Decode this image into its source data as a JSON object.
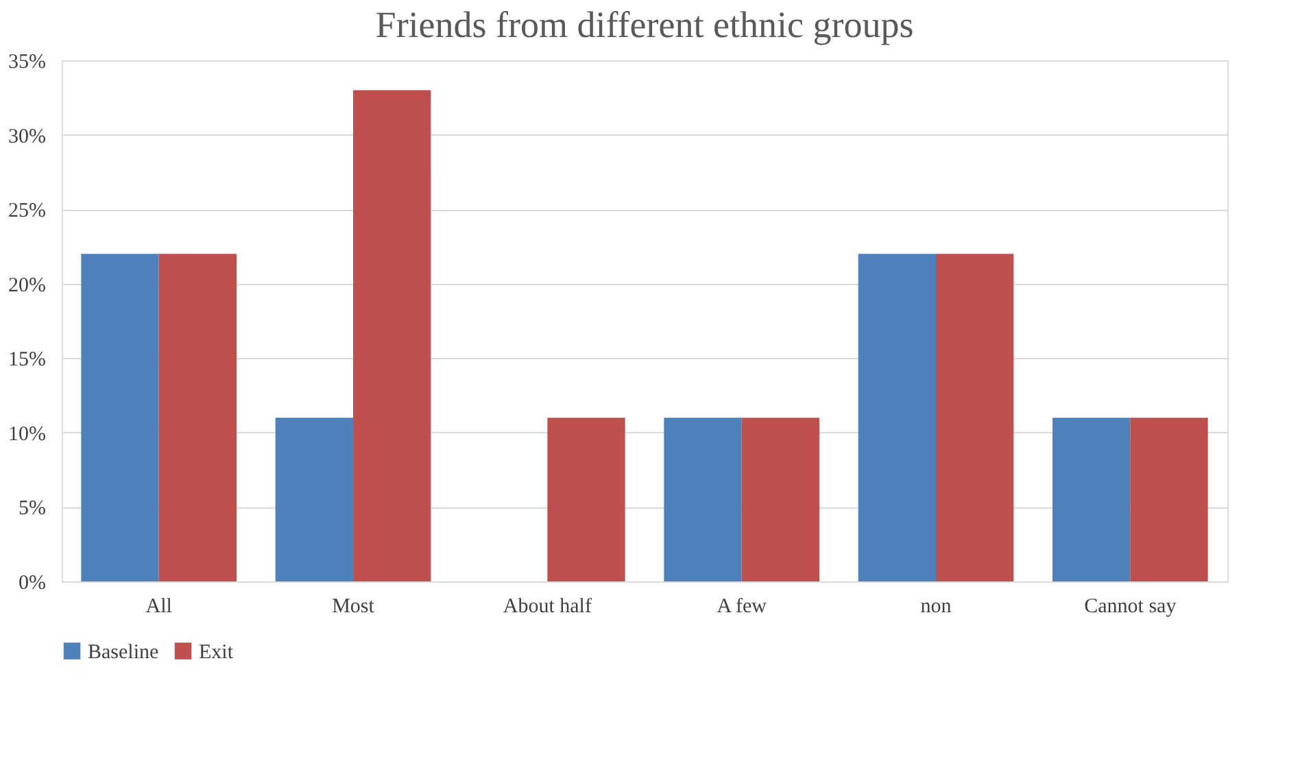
{
  "chart_data": {
    "type": "bar",
    "title": "Friends from different ethnic groups",
    "categories": [
      "All",
      "Most",
      "About half",
      "A few",
      "non",
      "Cannot say"
    ],
    "series": [
      {
        "name": "Baseline",
        "color": "#4f81bd",
        "values": [
          22,
          11,
          0,
          11,
          22,
          11
        ]
      },
      {
        "name": "Exit",
        "color": "#c0504d",
        "values": [
          22,
          33,
          11,
          11,
          22,
          11
        ]
      }
    ],
    "ylim": [
      0,
      35
    ],
    "yticks": [
      {
        "value": 0,
        "label": "0%"
      },
      {
        "value": 5,
        "label": "5%"
      },
      {
        "value": 10,
        "label": "10%"
      },
      {
        "value": 15,
        "label": "15%"
      },
      {
        "value": 20,
        "label": "20%"
      },
      {
        "value": 25,
        "label": "25%"
      },
      {
        "value": 30,
        "label": "30%"
      },
      {
        "value": 35,
        "label": "35%"
      }
    ],
    "grid": "y",
    "legend": "bottom"
  }
}
